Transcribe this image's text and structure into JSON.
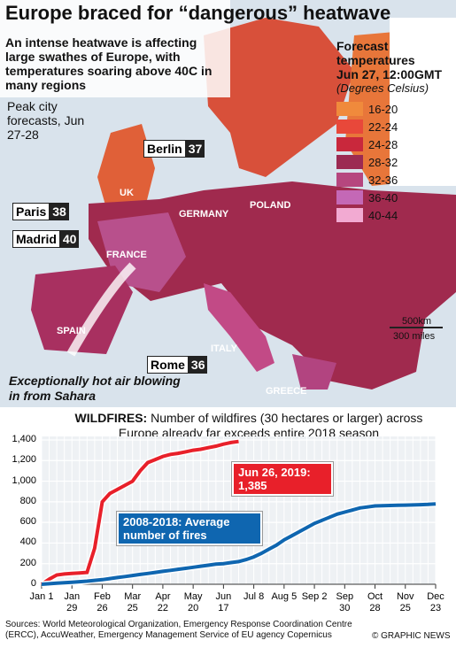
{
  "title": "Europe braced for “dangerous” heatwave",
  "subtitle": "An intense heatwave is affecting large swathes of Europe, with temperatures soaring above 40C in many regions",
  "map": {
    "note": "Peak city forecasts, Jun 27-28",
    "cities": [
      {
        "name": "Berlin",
        "temp": 37
      },
      {
        "name": "Paris",
        "temp": 38
      },
      {
        "name": "Madrid",
        "temp": 40
      },
      {
        "name": "Rome",
        "temp": 36
      }
    ],
    "countries": [
      "UK",
      "GERMANY",
      "POLAND",
      "FRANCE",
      "SPAIN",
      "ITALY",
      "GREECE"
    ],
    "annotation": "Exceptionally hot air blowing in from Sahara",
    "scale": [
      "500km",
      "300 miles"
    ],
    "legend": {
      "title": [
        "Forecast",
        "temperatures",
        "Jun 27, 12:00GMT"
      ],
      "subtitle": "(Degrees Celsius)",
      "items": [
        {
          "label": "16-20",
          "color": "#f08a3c"
        },
        {
          "label": "22-24",
          "color": "#e8483a"
        },
        {
          "label": "24-28",
          "color": "#c9283c"
        },
        {
          "label": "28-32",
          "color": "#9c2a52"
        },
        {
          "label": "32-36",
          "color": "#b6467e"
        },
        {
          "label": "36-40",
          "color": "#c468b6"
        },
        {
          "label": "40-44",
          "color": "#f2aad2"
        }
      ]
    }
  },
  "chart_data": {
    "type": "line",
    "title": "WILDFIRES:",
    "subtitle": "Number of wildfires (30 hectares or larger) across Europe already far exceeds entire 2018 season",
    "categories": [
      "Jan 1",
      null,
      null,
      null,
      "Jan 29",
      null,
      null,
      null,
      "Feb 26",
      null,
      null,
      null,
      "Mar 25",
      null,
      null,
      null,
      "Apr 22",
      null,
      null,
      null,
      "May 20",
      null,
      null,
      null,
      "Jun 17",
      null,
      null,
      null,
      "Jul 8",
      null,
      null,
      null,
      "Aug 5",
      null,
      null,
      null,
      "Sep 2",
      null,
      null,
      null,
      "Sep 30",
      null,
      null,
      null,
      "Oct 28",
      null,
      null,
      null,
      "Nov 25",
      null,
      null,
      null,
      "Dec 23"
    ],
    "series": [
      {
        "name": "Jun 26, 2019: 1,385",
        "color": "#e8202a",
        "values": [
          0,
          50,
          90,
          100,
          105,
          110,
          115,
          350,
          800,
          880,
          920,
          960,
          1000,
          1100,
          1180,
          1210,
          1240,
          1260,
          1270,
          1285,
          1300,
          1310,
          1325,
          1340,
          1360,
          1375,
          1385,
          null,
          null,
          null,
          null,
          null,
          null,
          null,
          null,
          null,
          null,
          null,
          null,
          null,
          null,
          null,
          null,
          null,
          null,
          null,
          null,
          null,
          null,
          null,
          null,
          null,
          null
        ]
      },
      {
        "name": "2008-2018: Average number of fires",
        "color": "#0f66b0",
        "values": [
          0,
          5,
          10,
          15,
          20,
          25,
          30,
          38,
          45,
          55,
          65,
          75,
          85,
          95,
          105,
          115,
          125,
          135,
          145,
          155,
          165,
          175,
          185,
          195,
          200,
          210,
          220,
          240,
          265,
          300,
          340,
          380,
          430,
          470,
          510,
          550,
          590,
          620,
          650,
          680,
          700,
          720,
          740,
          750,
          760,
          762,
          764,
          766,
          768,
          770,
          772,
          775,
          780
        ]
      }
    ],
    "ylim": [
      0,
      1400
    ],
    "yticks": [
      0,
      200,
      400,
      600,
      800,
      {
        "value": 1000,
        "label": "1,000"
      },
      {
        "value": 1200,
        "label": "1,200"
      },
      {
        "value": 1400,
        "label": "1,400"
      }
    ],
    "grid": true
  },
  "footer": {
    "sources": "Sources: World Meteorological Organization, Emergency Response Coordination Centre (ERCC), AccuWeather, Emergency Management Service of EU agency Copernicus",
    "credit": "© GRAPHIC NEWS"
  }
}
